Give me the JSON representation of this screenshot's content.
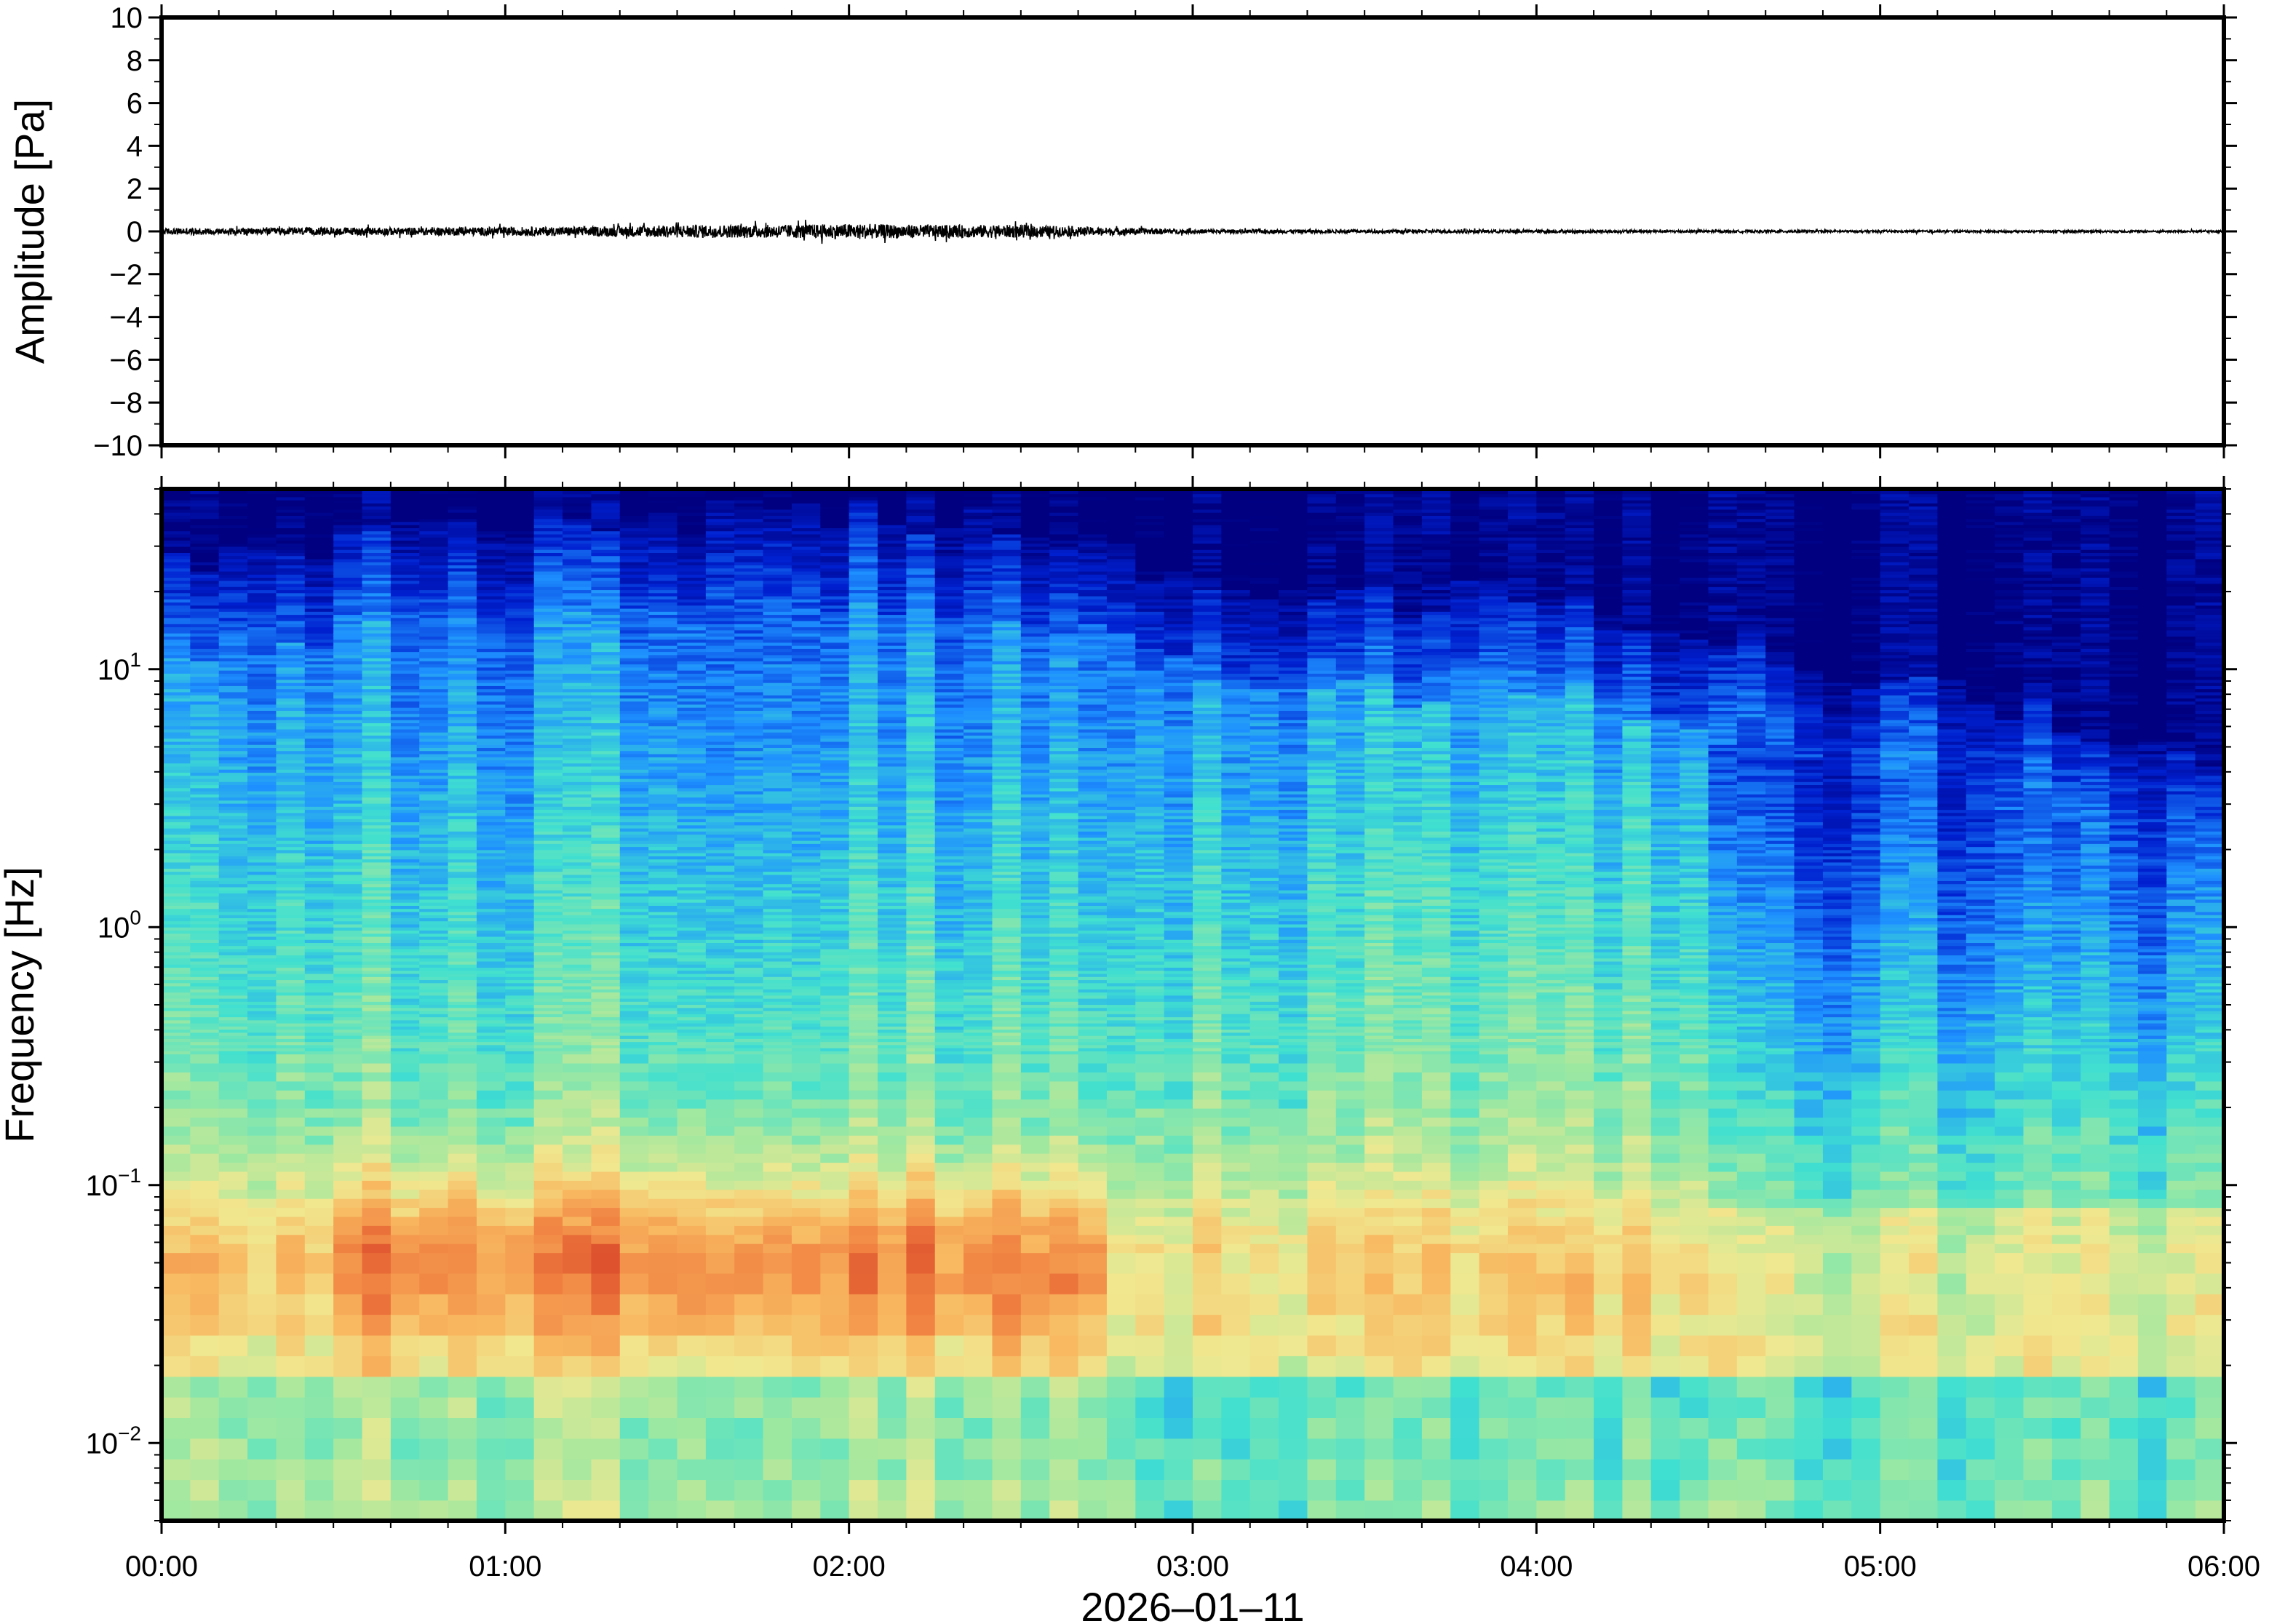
{
  "chart_data": [
    {
      "type": "line",
      "ylabel": "Amplitude [Pa]",
      "ylim": [
        -10,
        10
      ],
      "yticks": [
        10,
        8,
        6,
        4,
        2,
        0,
        -2,
        -4,
        -6,
        -8,
        -10
      ],
      "ytick_labels": [
        "10",
        "8",
        "6",
        "4",
        "2",
        "0",
        "−2",
        "−4",
        "−6",
        "−8",
        "−10"
      ],
      "xlim_hours": [
        0,
        6
      ],
      "series": [
        {
          "values_envelope": {
            "time_hours": [
              0,
              0.25,
              0.5,
              0.75,
              1.0,
              1.25,
              1.5,
              1.75,
              2.0,
              2.25,
              2.5,
              2.75,
              3.0,
              3.5,
              4.0,
              4.5,
              5.0,
              5.5,
              6.0
            ],
            "half_range_pa": [
              0.15,
              0.15,
              0.18,
              0.18,
              0.2,
              0.22,
              0.3,
              0.3,
              0.35,
              0.3,
              0.3,
              0.18,
              0.1,
              0.08,
              0.08,
              0.06,
              0.05,
              0.05,
              0.05
            ]
          }
        }
      ]
    },
    {
      "type": "heatmap",
      "ylabel": "Frequency [Hz]",
      "xlabel": "2026–01–11",
      "yscale": "log",
      "ylim": [
        0.005,
        50
      ],
      "yticks": [
        0.01,
        0.1,
        1,
        10
      ],
      "ytick_labels": [
        {
          "base": "10",
          "exp": "−2"
        },
        {
          "base": "10",
          "exp": "−1"
        },
        {
          "base": "10",
          "exp": "0"
        },
        {
          "base": "10",
          "exp": "1"
        }
      ],
      "xticks_hours": [
        0,
        1,
        2,
        3,
        4,
        5,
        6
      ],
      "xtick_labels": [
        "00:00",
        "01:00",
        "02:00",
        "03:00",
        "04:00",
        "05:00",
        "06:00"
      ],
      "colormap": "jet",
      "colormap_stops": [
        "#000080",
        "#0020d0",
        "#1e90ff",
        "#40e0d0",
        "#a0e8a0",
        "#f0e890",
        "#f8b860",
        "#f08040",
        "#d03020"
      ],
      "description_values": {
        "peak_band_hz": [
          0.03,
          0.12
        ],
        "peak_time_hours": [
          0.5,
          2.75
        ],
        "hf_cutoff_hz": {
          "time_hours": [
            0,
            0.5,
            1.0,
            1.5,
            2.0,
            2.5,
            3.0,
            3.5,
            4.0,
            4.5,
            5.0,
            5.5,
            6.0
          ],
          "freq_hz": [
            12,
            14,
            15,
            18,
            18,
            16,
            10,
            8,
            9,
            6,
            4,
            3,
            1.5
          ]
        }
      }
    }
  ]
}
